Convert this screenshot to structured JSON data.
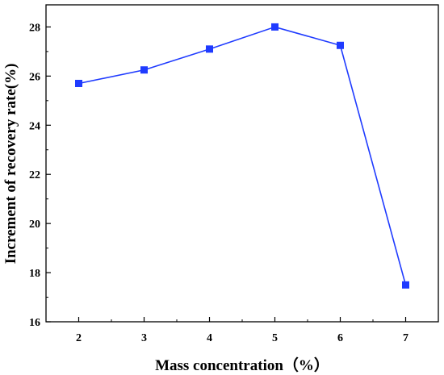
{
  "chart_data": {
    "type": "line",
    "title": "",
    "xlabel": "Mass concentration（%）",
    "ylabel": "Increment of recovery rate(%)",
    "x": [
      2,
      3,
      4,
      5,
      6,
      7
    ],
    "series": [
      {
        "values": [
          25.7,
          26.25,
          27.1,
          28.0,
          27.25,
          17.5
        ]
      }
    ],
    "xticks": [
      2,
      3,
      4,
      5,
      6,
      7
    ],
    "yticks": [
      16,
      18,
      20,
      22,
      24,
      26,
      28
    ],
    "xlim": [
      1.5,
      7.5
    ],
    "ylim": [
      16,
      28.9
    ],
    "grid": false,
    "legend": "none",
    "colors": {
      "series": "#1f3bff",
      "axis": "#000000"
    }
  }
}
